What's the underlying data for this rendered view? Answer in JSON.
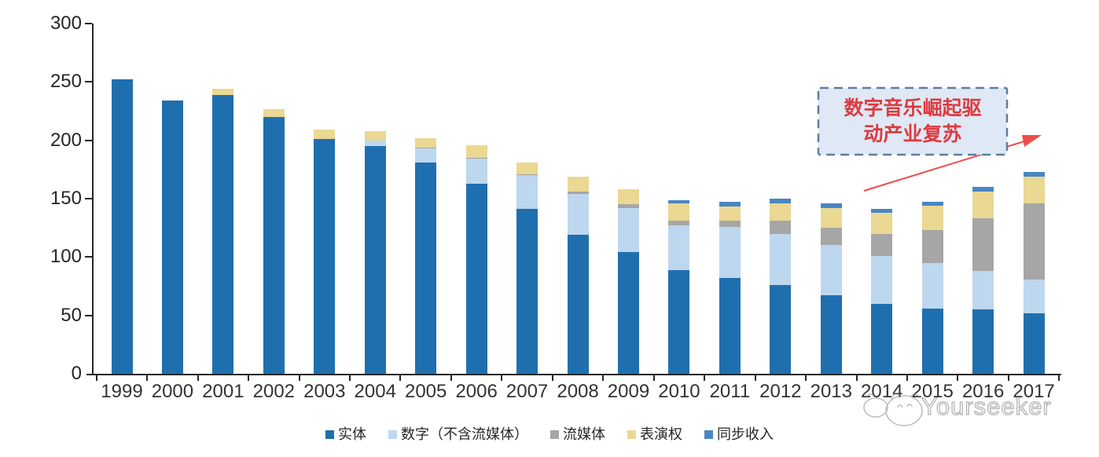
{
  "chart_data": {
    "type": "bar",
    "stacked": true,
    "title": "",
    "xlabel": "",
    "ylabel": "",
    "ylim": [
      0,
      300
    ],
    "ytick_step": 50,
    "grid": false,
    "legend_position": "bottom",
    "categories": [
      "1999",
      "2000",
      "2001",
      "2002",
      "2003",
      "2004",
      "2005",
      "2006",
      "2007",
      "2008",
      "2009",
      "2010",
      "2011",
      "2012",
      "2013",
      "2014",
      "2015",
      "2016",
      "2017"
    ],
    "series": [
      {
        "name": "实体",
        "color": "#1F6FAF",
        "values": [
          252,
          234,
          239,
          220,
          201,
          195,
          181,
          163,
          141,
          119,
          104,
          89,
          82,
          76,
          67,
          60,
          56,
          55,
          52
        ]
      },
      {
        "name": "数字（不含流媒体）",
        "color": "#BDD7EE",
        "values": [
          0,
          0,
          0,
          0,
          0,
          5,
          12,
          21,
          29,
          35,
          38,
          38,
          44,
          44,
          43,
          41,
          39,
          33,
          29
        ]
      },
      {
        "name": "流媒体",
        "color": "#A6A6A6",
        "values": [
          0,
          0,
          0,
          0,
          0,
          0,
          1,
          1,
          1,
          2,
          3,
          4,
          5,
          11,
          15,
          19,
          28,
          45,
          65
        ]
      },
      {
        "name": "表演权",
        "color": "#EAD893",
        "values": [
          0,
          0,
          5,
          7,
          8,
          8,
          8,
          11,
          10,
          13,
          13,
          15,
          12,
          15,
          17,
          18,
          21,
          23,
          23
        ]
      },
      {
        "name": "同步收入",
        "color": "#4A86C2",
        "values": [
          0,
          0,
          0,
          0,
          0,
          0,
          0,
          0,
          0,
          0,
          0,
          3,
          4,
          4,
          4,
          3,
          3,
          4,
          4
        ]
      }
    ],
    "y_tick_labels": [
      "0",
      "50",
      "100",
      "150",
      "200",
      "250",
      "300"
    ]
  },
  "annotation": {
    "line1": "数字音乐崛起驱",
    "line2": "动产业复苏",
    "text_color": "#DE3A40",
    "box_fill": "#DEE9F5",
    "box_border": "#5F7DA0",
    "arrow_color": "#F04B4B"
  },
  "watermark": {
    "brand": "Yourseeker",
    "logo": "cat-sketch-icon",
    "color": "#8c8c8c"
  },
  "axis_color": "#262626"
}
